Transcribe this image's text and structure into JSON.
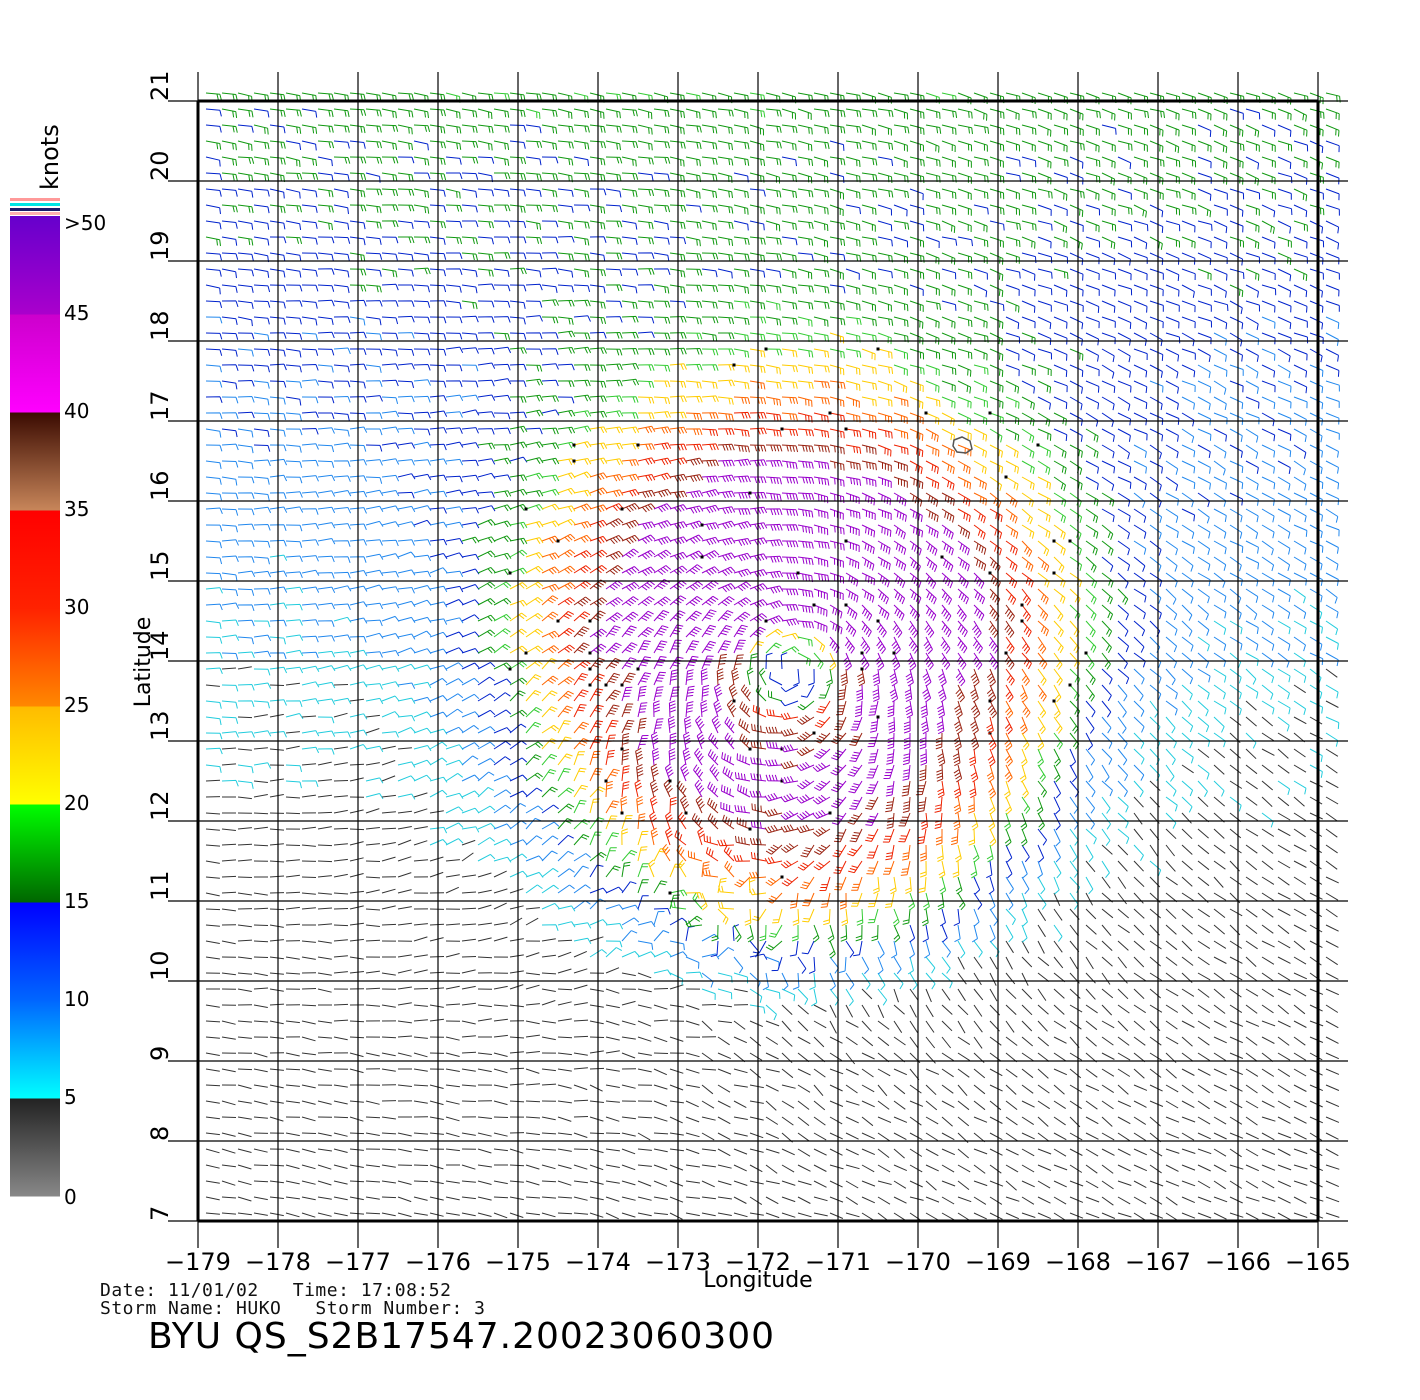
{
  "map": {
    "x_axis_label": "Longitude",
    "y_axis_label": "Latitude",
    "lon_ticks": [
      "−179",
      "−178",
      "−177",
      "−176",
      "−175",
      "−174",
      "−173",
      "−172",
      "−171",
      "−170",
      "−169",
      "−168",
      "−167",
      "−166",
      "−165"
    ],
    "lat_ticks": [
      "7",
      "8",
      "9",
      "10",
      "11",
      "12",
      "13",
      "14",
      "15",
      "16",
      "17",
      "18",
      "19",
      "20",
      "21"
    ],
    "lon_range": [
      -179,
      -165
    ],
    "lat_range": [
      7,
      21
    ],
    "storm_center": {
      "lon": -171.6,
      "lat": 13.9
    },
    "grid": true
  },
  "colorbar": {
    "unit_label": "knots",
    "labels": [
      "0",
      "5",
      "10",
      "15",
      "20",
      "25",
      "30",
      "35",
      "40",
      "45",
      ">50"
    ],
    "segments": [
      {
        "from": 0,
        "to": 5,
        "colors": [
          "#888888",
          "#222222"
        ]
      },
      {
        "from": 5,
        "to": 10,
        "colors": [
          "#00ffff",
          "#0066ff"
        ]
      },
      {
        "from": 10,
        "to": 15,
        "colors": [
          "#0066ff",
          "#0000ff"
        ]
      },
      {
        "from": 15,
        "to": 20,
        "colors": [
          "#006600",
          "#00ff00"
        ]
      },
      {
        "from": 20,
        "to": 25,
        "colors": [
          "#ffff00",
          "#ffbb00"
        ]
      },
      {
        "from": 25,
        "to": 30,
        "colors": [
          "#ff8800",
          "#ff2200"
        ]
      },
      {
        "from": 30,
        "to": 35,
        "colors": [
          "#ff2200",
          "#ff0000"
        ]
      },
      {
        "from": 35,
        "to": 40,
        "colors": [
          "#c8865a",
          "#3a0a00"
        ]
      },
      {
        "from": 40,
        "to": 45,
        "colors": [
          "#ff00ff",
          "#cc00cc"
        ]
      },
      {
        "from": 45,
        "to": 50,
        "colors": [
          "#aa00cc",
          "#6600cc"
        ]
      }
    ]
  },
  "info": {
    "date_line": "Date: 11/01/02   Time: 17:08:52",
    "storm_line": "Storm Name: HUKO   Storm Number: 3",
    "file_title": "BYU QS_S2B17547.20023060300"
  }
}
